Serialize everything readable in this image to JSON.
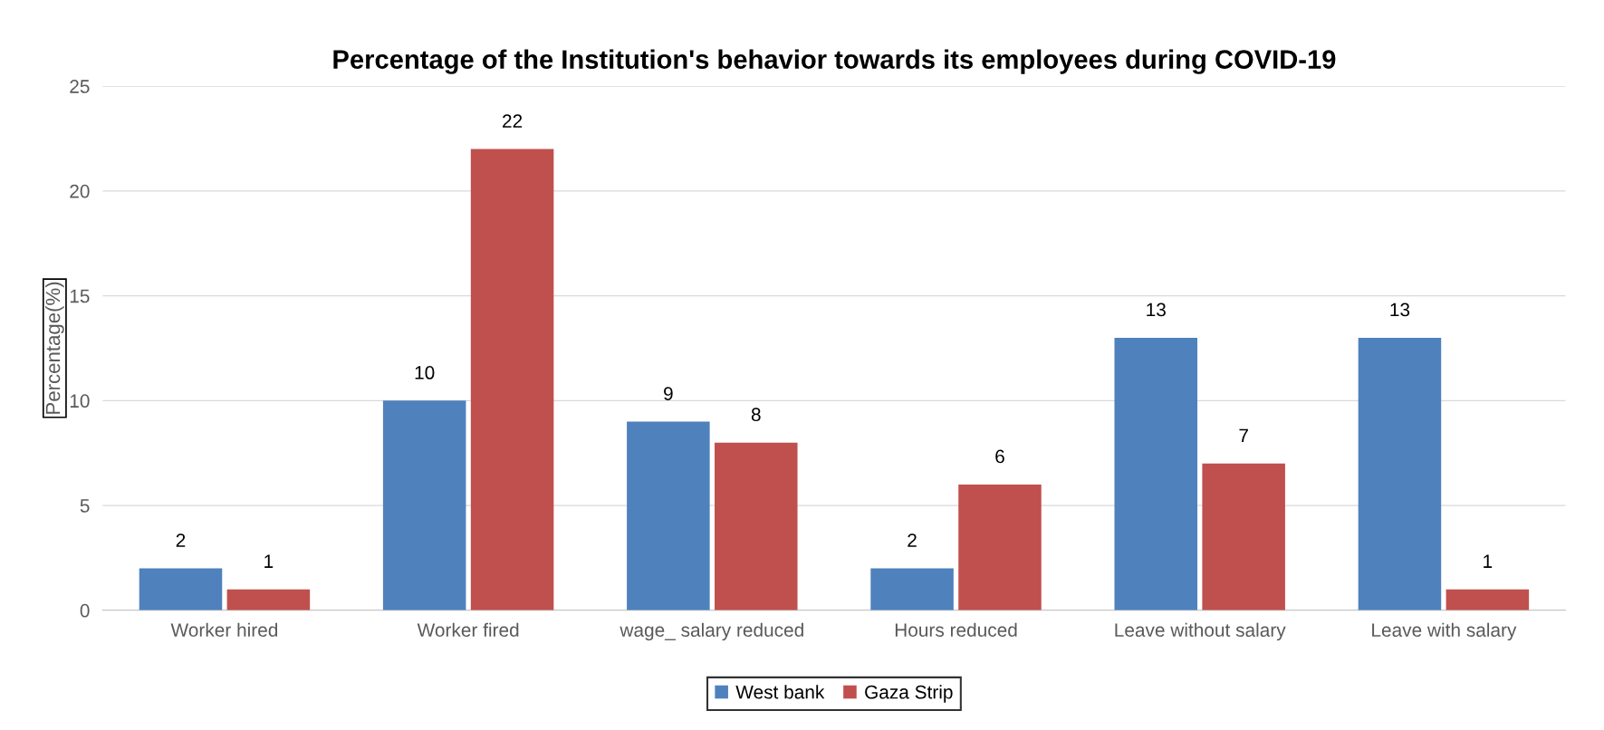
{
  "chart_data": {
    "type": "bar",
    "title": "Percentage of the Institution's behavior towards its employees during COVID-19",
    "ylabel": "Percentage(%)",
    "categories": [
      "Worker hired",
      "Worker fired",
      "wage_ salary reduced",
      "Hours reduced",
      "Leave without salary",
      "Leave with salary"
    ],
    "series": [
      {
        "name": "West bank",
        "color": "#4f81bd",
        "values": [
          2,
          10,
          9,
          2,
          13,
          13
        ]
      },
      {
        "name": "Gaza Strip",
        "color": "#c0504d",
        "values": [
          1,
          22,
          8,
          6,
          7,
          1
        ]
      }
    ],
    "ylim": [
      0,
      25
    ],
    "yticks": [
      0,
      5,
      10,
      15,
      20,
      25
    ],
    "grid": "y",
    "legend": "bottom",
    "data_labels": true
  }
}
